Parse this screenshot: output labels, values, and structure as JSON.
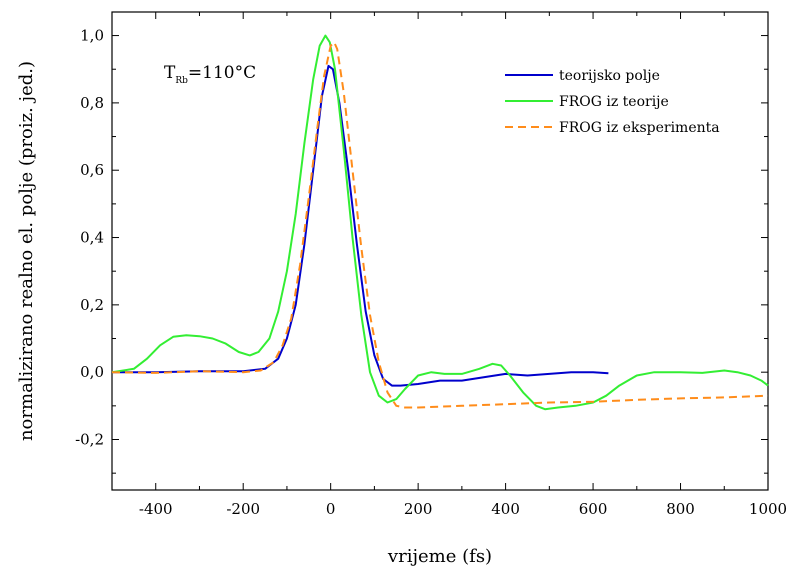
{
  "chart_data": {
    "type": "line",
    "xlabel": "vrijeme (fs)",
    "ylabel": "normalizirano realno el. polje (proiz. jed.)",
    "xlim": [
      -500,
      1000
    ],
    "ylim": [
      -0.35,
      1.07
    ],
    "x_ticks": [
      -400,
      -200,
      0,
      200,
      400,
      600,
      800,
      1000
    ],
    "x_tick_labels": [
      "-400",
      "-200",
      "0",
      "200",
      "400",
      "600",
      "800",
      "1000"
    ],
    "y_ticks": [
      -0.2,
      0.0,
      0.2,
      0.4,
      0.6,
      0.8,
      1.0
    ],
    "y_tick_labels": [
      "-0,2",
      "0,0",
      "0,2",
      "0,4",
      "0,6",
      "0,8",
      "1,0"
    ],
    "grid": false,
    "legend_position": "top-right",
    "annotation": {
      "main": "T",
      "sub": "Rb",
      "rest": "=110°C"
    },
    "series": [
      {
        "name": "teorijsko polje",
        "color": "#0000cc",
        "style": "solid",
        "points": [
          [
            -500,
            0.0
          ],
          [
            -400,
            0.0
          ],
          [
            -300,
            0.003
          ],
          [
            -200,
            0.003
          ],
          [
            -150,
            0.01
          ],
          [
            -120,
            0.04
          ],
          [
            -100,
            0.1
          ],
          [
            -80,
            0.2
          ],
          [
            -60,
            0.38
          ],
          [
            -40,
            0.6
          ],
          [
            -20,
            0.82
          ],
          [
            -5,
            0.91
          ],
          [
            5,
            0.9
          ],
          [
            20,
            0.8
          ],
          [
            40,
            0.6
          ],
          [
            60,
            0.38
          ],
          [
            80,
            0.18
          ],
          [
            100,
            0.05
          ],
          [
            120,
            -0.02
          ],
          [
            140,
            -0.04
          ],
          [
            160,
            -0.04
          ],
          [
            200,
            -0.035
          ],
          [
            250,
            -0.025
          ],
          [
            300,
            -0.025
          ],
          [
            350,
            -0.015
          ],
          [
            400,
            -0.005
          ],
          [
            450,
            -0.01
          ],
          [
            500,
            -0.005
          ],
          [
            550,
            0.0
          ],
          [
            600,
            0.0
          ],
          [
            635,
            -0.003
          ]
        ]
      },
      {
        "name": "FROG iz teorije",
        "color": "#33ee33",
        "style": "solid",
        "points": [
          [
            -500,
            0.0
          ],
          [
            -450,
            0.01
          ],
          [
            -420,
            0.04
          ],
          [
            -390,
            0.08
          ],
          [
            -360,
            0.105
          ],
          [
            -330,
            0.11
          ],
          [
            -300,
            0.107
          ],
          [
            -270,
            0.1
          ],
          [
            -240,
            0.085
          ],
          [
            -210,
            0.06
          ],
          [
            -185,
            0.05
          ],
          [
            -165,
            0.06
          ],
          [
            -140,
            0.1
          ],
          [
            -120,
            0.18
          ],
          [
            -100,
            0.3
          ],
          [
            -80,
            0.47
          ],
          [
            -60,
            0.68
          ],
          [
            -40,
            0.87
          ],
          [
            -25,
            0.97
          ],
          [
            -12,
            1.0
          ],
          [
            -2,
            0.98
          ],
          [
            10,
            0.9
          ],
          [
            30,
            0.66
          ],
          [
            50,
            0.4
          ],
          [
            70,
            0.17
          ],
          [
            90,
            0.0
          ],
          [
            110,
            -0.07
          ],
          [
            130,
            -0.09
          ],
          [
            150,
            -0.08
          ],
          [
            170,
            -0.05
          ],
          [
            200,
            -0.01
          ],
          [
            230,
            0.0
          ],
          [
            260,
            -0.005
          ],
          [
            300,
            -0.005
          ],
          [
            340,
            0.01
          ],
          [
            370,
            0.025
          ],
          [
            390,
            0.02
          ],
          [
            410,
            -0.01
          ],
          [
            440,
            -0.06
          ],
          [
            470,
            -0.1
          ],
          [
            490,
            -0.11
          ],
          [
            520,
            -0.105
          ],
          [
            560,
            -0.1
          ],
          [
            600,
            -0.09
          ],
          [
            630,
            -0.07
          ],
          [
            660,
            -0.04
          ],
          [
            700,
            -0.01
          ],
          [
            740,
            0.0
          ],
          [
            800,
            0.0
          ],
          [
            850,
            -0.002
          ],
          [
            900,
            0.005
          ],
          [
            930,
            0.0
          ],
          [
            960,
            -0.01
          ],
          [
            985,
            -0.025
          ],
          [
            1000,
            -0.04
          ]
        ]
      },
      {
        "name": "FROG iz eksperimenta",
        "color": "#ff8c1a",
        "style": "dashed",
        "points": [
          [
            -500,
            0.0
          ],
          [
            -400,
            -0.002
          ],
          [
            -300,
            0.003
          ],
          [
            -200,
            0.0
          ],
          [
            -160,
            0.005
          ],
          [
            -130,
            0.03
          ],
          [
            -110,
            0.08
          ],
          [
            -90,
            0.16
          ],
          [
            -70,
            0.32
          ],
          [
            -50,
            0.52
          ],
          [
            -30,
            0.73
          ],
          [
            -15,
            0.88
          ],
          [
            0,
            0.97
          ],
          [
            8,
            0.98
          ],
          [
            15,
            0.96
          ],
          [
            30,
            0.83
          ],
          [
            50,
            0.6
          ],
          [
            70,
            0.37
          ],
          [
            90,
            0.17
          ],
          [
            110,
            0.03
          ],
          [
            130,
            -0.06
          ],
          [
            150,
            -0.1
          ],
          [
            170,
            -0.105
          ],
          [
            200,
            -0.105
          ],
          [
            300,
            -0.1
          ],
          [
            400,
            -0.095
          ],
          [
            500,
            -0.09
          ],
          [
            600,
            -0.088
          ],
          [
            700,
            -0.082
          ],
          [
            800,
            -0.078
          ],
          [
            900,
            -0.075
          ],
          [
            1000,
            -0.07
          ]
        ]
      }
    ]
  }
}
